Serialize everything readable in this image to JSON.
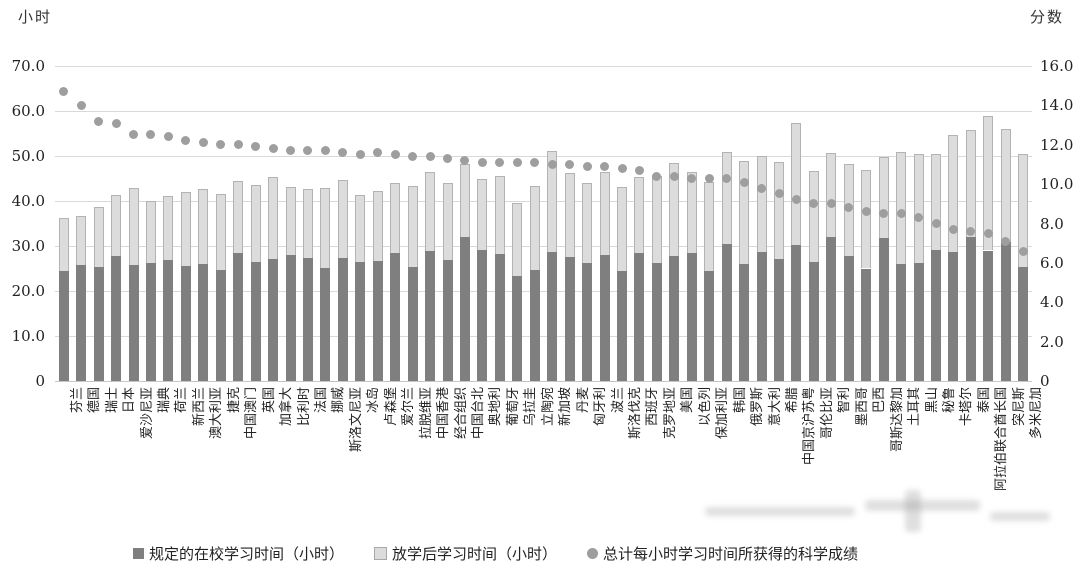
{
  "chart_data": {
    "type": "bar",
    "subtype": "stacked-bars-with-scatter-overlay",
    "title": "",
    "grid": true,
    "legend_position": "bottom",
    "left_axis": {
      "title": "小时",
      "min": 0,
      "max": 70,
      "step": 10,
      "ticks": [
        "70.0",
        "60.0",
        "50.0",
        "40.0",
        "30.0",
        "20.0",
        "10.0",
        "0"
      ]
    },
    "right_axis": {
      "title": "分数",
      "min": 0,
      "max": 16,
      "step": 2,
      "ticks": [
        "16.0",
        "14.0",
        "12.0",
        "10.0",
        "8.0",
        "6.0",
        "4.0",
        "2.0",
        "0"
      ]
    },
    "categories": [
      "芬兰",
      "德国",
      "瑞士",
      "日本",
      "爱沙尼亚",
      "瑞典",
      "荷兰",
      "新西兰",
      "澳大利亚",
      "捷克",
      "中国澳门",
      "英国",
      "加拿大",
      "比利时",
      "法国",
      "挪威",
      "斯洛文尼亚",
      "冰岛",
      "卢森堡",
      "爱尔兰",
      "拉脱维亚",
      "中国香港",
      "经合组织",
      "中国台北",
      "奥地利",
      "葡萄牙",
      "乌拉圭",
      "立陶宛",
      "新加坡",
      "丹麦",
      "匈牙利",
      "波兰",
      "斯洛伐克",
      "西班牙",
      "克罗地亚",
      "美国",
      "以色列",
      "保加利亚",
      "韩国",
      "俄罗斯",
      "意大利",
      "希腊",
      "中国京沪苏粤",
      "哥伦比亚",
      "智利",
      "墨西哥",
      "巴西",
      "哥斯达黎加",
      "土耳其",
      "黑山",
      "秘鲁",
      "卡塔尔",
      "泰国",
      "阿拉伯联合酋长国",
      "突尼斯",
      "多米尼加"
    ],
    "series": [
      {
        "name": "规定的在校学习时间（小时）",
        "render": "bar",
        "axis": "left",
        "color": "#7f7f7f",
        "values": [
          24.4,
          25.7,
          25.4,
          27.8,
          25.8,
          26.2,
          26.9,
          25.6,
          25.9,
          24.7,
          28.4,
          26.5,
          27.1,
          28.0,
          27.4,
          25.2,
          27.3,
          26.4,
          26.7,
          28.5,
          25.3,
          29.0,
          26.9,
          31.9,
          29.1,
          28.2,
          23.4,
          24.7,
          28.7,
          27.5,
          26.2,
          27.9,
          24.5,
          28.4,
          26.2,
          27.8,
          28.5,
          24.5,
          30.4,
          26.0,
          28.6,
          27.1,
          30.2,
          26.5,
          32.0,
          27.8,
          25.0,
          31.8,
          26.0,
          26.2,
          29.2,
          28.7,
          32.0,
          29.0,
          30.9,
          25.4
        ]
      },
      {
        "name": "放学后学习时间（小时）",
        "render": "bar",
        "axis": "left",
        "color": "#dcdcdc",
        "values": [
          11.9,
          10.9,
          13.2,
          13.6,
          17.1,
          13.8,
          14.3,
          16.5,
          16.8,
          16.8,
          16.1,
          17.1,
          18.3,
          15.2,
          15.3,
          17.8,
          17.3,
          14.9,
          15.6,
          15.6,
          18.0,
          17.5,
          17.2,
          16.4,
          15.7,
          17.3,
          16.2,
          18.6,
          22.4,
          18.8,
          17.8,
          18.5,
          18.7,
          17.0,
          19.3,
          20.6,
          17.9,
          19.7,
          20.4,
          22.8,
          21.3,
          21.5,
          27.2,
          20.1,
          18.6,
          20.4,
          21.9,
          18.0,
          24.8,
          24.2,
          21.2,
          26.0,
          23.7,
          29.9,
          25.0,
          25.0
        ]
      },
      {
        "name": "总计每小时学习时间所获得的科学成绩",
        "render": "scatter",
        "axis": "right",
        "color": "#9e9e9e",
        "values": [
          14.7,
          14.0,
          13.2,
          13.1,
          12.5,
          12.5,
          12.4,
          12.2,
          12.1,
          12.0,
          12.0,
          11.9,
          11.8,
          11.7,
          11.7,
          11.7,
          11.6,
          11.5,
          11.6,
          11.5,
          11.4,
          11.4,
          11.3,
          11.2,
          11.1,
          11.1,
          11.1,
          11.1,
          11.0,
          11.0,
          10.9,
          10.9,
          10.8,
          10.7,
          10.4,
          10.4,
          10.3,
          10.3,
          10.3,
          10.1,
          9.8,
          9.5,
          9.2,
          9.0,
          9.0,
          8.8,
          8.6,
          8.5,
          8.5,
          8.3,
          8.0,
          7.7,
          7.6,
          7.5,
          7.1,
          6.6
        ]
      }
    ]
  }
}
